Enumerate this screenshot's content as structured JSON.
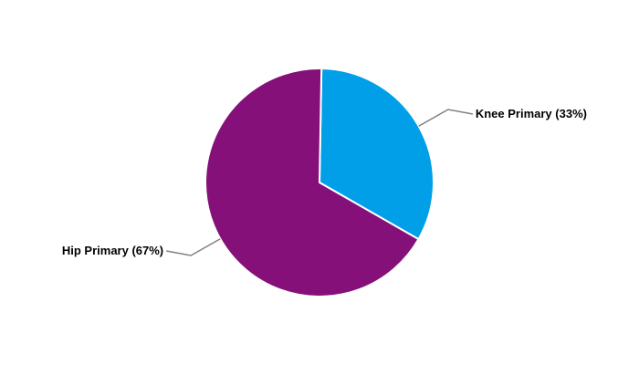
{
  "chart_data": {
    "type": "pie",
    "categories": [
      "Knee Primary",
      "Hip Primary"
    ],
    "values": [
      33,
      67
    ],
    "labels": [
      "Knee Primary (33%)",
      "Hip Primary (67%)"
    ],
    "colors": [
      "#009fe8",
      "#85107a"
    ],
    "slice_border_color": "#ffffff",
    "leader_line_color": "#808080",
    "legend": "none"
  }
}
